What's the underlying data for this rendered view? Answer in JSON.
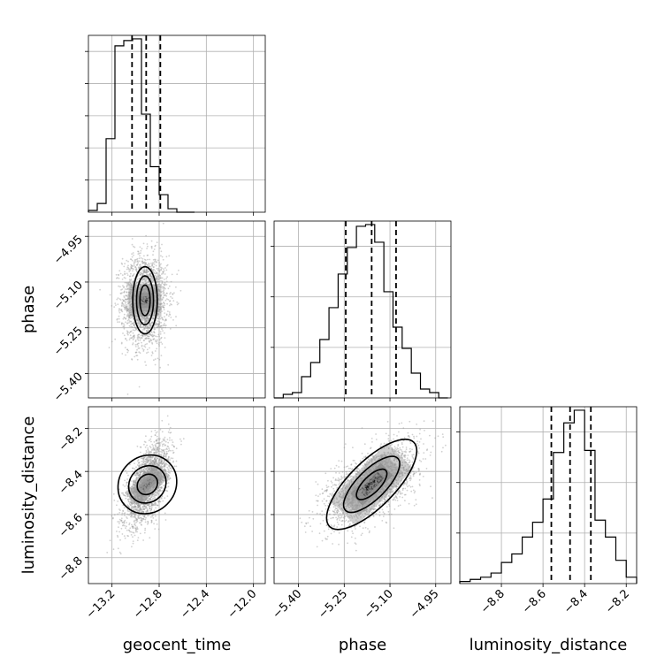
{
  "chart_data": {
    "type": "corner",
    "parameters": [
      "geocent_time",
      "phase",
      "luminosity_distance"
    ],
    "grid": true,
    "histograms": [
      {
        "parameter": "geocent_time",
        "xlim": [
          -13.4,
          -11.9
        ],
        "bin_edges": [
          -13.4,
          -13.325,
          -13.25,
          -13.175,
          -13.1,
          -13.025,
          -12.95,
          -12.875,
          -12.8,
          -12.725,
          -12.65,
          -12.575,
          -12.5
        ],
        "counts": [
          1,
          5,
          42,
          95,
          98,
          99,
          56,
          26,
          10,
          2,
          0,
          0
        ],
        "quantiles": [
          -13.03,
          -12.91,
          -12.79
        ],
        "yticks": 5
      },
      {
        "parameter": "phase",
        "xlim": [
          -5.48,
          -4.9
        ],
        "bin_edges": [
          -5.48,
          -5.45,
          -5.42,
          -5.39,
          -5.36,
          -5.33,
          -5.3,
          -5.27,
          -5.24,
          -5.21,
          -5.18,
          -5.15,
          -5.12,
          -5.09,
          -5.06,
          -5.03,
          -5.0,
          -4.97,
          -4.94,
          -4.91
        ],
        "counts": [
          0,
          2,
          3,
          12,
          20,
          33,
          51,
          70,
          85,
          97,
          98,
          88,
          60,
          40,
          28,
          14,
          5,
          3,
          0
        ],
        "quantiles": [
          -5.245,
          -5.16,
          -5.08
        ],
        "yticks": 3
      },
      {
        "parameter": "luminosity_distance",
        "xlim": [
          -9.0,
          -8.15
        ],
        "bin_edges": [
          -9.0,
          -8.95,
          -8.9,
          -8.85,
          -8.8,
          -8.75,
          -8.7,
          -8.65,
          -8.6,
          -8.55,
          -8.5,
          -8.45,
          -8.4,
          -8.35,
          -8.3,
          -8.25,
          -8.2,
          -8.15
        ],
        "counts": [
          1,
          2,
          3,
          5,
          10,
          14,
          22,
          29,
          40,
          62,
          76,
          82,
          63,
          30,
          22,
          11,
          3
        ],
        "quantiles": [
          -8.56,
          -8.47,
          -8.37
        ],
        "yticks": 3
      }
    ],
    "scatter_panels": [
      {
        "x": "geocent_time",
        "y": "phase",
        "center": [
          -12.92,
          -5.16
        ],
        "sigma": [
          0.09,
          0.07
        ],
        "corr": 0.0,
        "contours": [
          [
            0.12,
            0.1
          ],
          [
            0.2,
            0.16
          ],
          [
            0.29,
            0.22
          ]
        ]
      },
      {
        "x": "geocent_time",
        "y": "luminosity_distance",
        "center": [
          -12.9,
          -8.46
        ],
        "sigma": [
          0.09,
          0.09
        ],
        "corr": 0.6,
        "contours": [
          [
            0.1,
            0.09
          ],
          [
            0.18,
            0.17
          ],
          [
            0.28,
            0.27
          ]
        ]
      },
      {
        "x": "phase",
        "y": "luminosity_distance",
        "center": [
          -5.16,
          -8.46
        ],
        "sigma": [
          0.07,
          0.09
        ],
        "corr": 0.6,
        "contours": [
          [
            0.07,
            0.08
          ],
          [
            0.13,
            0.14
          ],
          [
            0.21,
            0.22
          ]
        ]
      }
    ],
    "axes": {
      "geocent_time": {
        "ticks": [
          -13.2,
          -12.8,
          -12.4,
          -12.0
        ],
        "tick_labels": [
          "−13.2",
          "−12.8",
          "−12.4",
          "−12.0"
        ],
        "label": "geocent_time"
      },
      "phase": {
        "ticks": [
          -5.4,
          -5.25,
          -5.1,
          -4.95
        ],
        "tick_labels": [
          "−5.40",
          "−5.25",
          "−5.10",
          "−4.95"
        ],
        "label": "phase",
        "ylim": [
          -5.48,
          -4.9
        ]
      },
      "luminosity_distance": {
        "ticks": [
          -8.8,
          -8.6,
          -8.4,
          -8.2
        ],
        "tick_labels": [
          "−8.8",
          "−8.6",
          "−8.4",
          "−8.2"
        ],
        "label": "luminosity_distance",
        "ylim": [
          -8.92,
          -8.1
        ]
      }
    }
  }
}
